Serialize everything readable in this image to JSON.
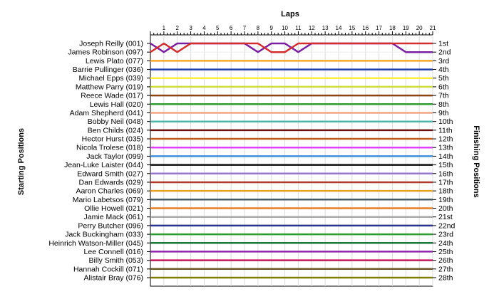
{
  "chart_data": {
    "type": "line",
    "title": "Laps",
    "ylabel_left": "Starting Positions",
    "ylabel_right": "Finishing Positions",
    "x": [
      0,
      1,
      2,
      3,
      4,
      5,
      6,
      7,
      8,
      9,
      10,
      11,
      12,
      13,
      14,
      15,
      16,
      17,
      18,
      19,
      20,
      21
    ],
    "x_ticks": [
      "1",
      "2",
      "3",
      "4",
      "5",
      "6",
      "7",
      "8",
      "9",
      "10",
      "11",
      "12",
      "13",
      "14",
      "15",
      "16",
      "17",
      "18",
      "19",
      "20",
      "21"
    ],
    "finishing_positions": [
      "1st",
      "2nd",
      "3rd",
      "4th",
      "5th",
      "6th",
      "7th",
      "8th",
      "9th",
      "10th",
      "11th",
      "12th",
      "13th",
      "14th",
      "15th",
      "16th",
      "17th",
      "18th",
      "19th",
      "20th",
      "21st",
      "22nd",
      "23rd",
      "24th",
      "25th",
      "26th",
      "27th",
      "28th"
    ],
    "series": [
      {
        "name": "Joseph Reilly (001)",
        "color": "#7b1fa2",
        "values": [
          1,
          2,
          1,
          1,
          1,
          1,
          1,
          1,
          2,
          1,
          1,
          2,
          1,
          1,
          1,
          1,
          1,
          1,
          1,
          2,
          2,
          2
        ]
      },
      {
        "name": "James Robinson (097)",
        "color": "#d32f2f",
        "values": [
          2,
          1,
          2,
          1,
          1,
          1,
          1,
          1,
          1,
          2,
          2,
          1,
          1,
          1,
          1,
          1,
          1,
          1,
          1,
          1,
          1,
          1
        ]
      },
      {
        "name": "Lewis Plato (077)",
        "color": "#f9a825",
        "values": [
          3,
          3,
          3,
          3,
          3,
          3,
          3,
          3,
          3,
          3,
          3,
          3,
          3,
          3,
          3,
          3,
          3,
          3,
          3,
          3,
          3,
          3
        ]
      },
      {
        "name": "Barrie Pullinger (036)",
        "color": "#1e3fae",
        "values": [
          4,
          4,
          4,
          4,
          4,
          4,
          4,
          4,
          4,
          4,
          4,
          4,
          4,
          4,
          4,
          4,
          4,
          4,
          4,
          4,
          4,
          4
        ]
      },
      {
        "name": "Michael Epps (039)",
        "color": "#ffeb3b",
        "values": [
          5,
          5,
          5,
          5,
          5,
          5,
          5,
          5,
          5,
          5,
          5,
          5,
          5,
          5,
          5,
          5,
          5,
          5,
          5,
          5,
          5,
          5
        ]
      },
      {
        "name": "Matthew Parry (019)",
        "color": "#cddc39",
        "values": [
          6,
          6,
          6,
          6,
          6,
          6,
          6,
          6,
          6,
          6,
          6,
          6,
          6,
          6,
          6,
          6,
          6,
          6,
          6,
          6,
          6,
          6
        ]
      },
      {
        "name": "Reece Wade (017)",
        "color": "#8b4513",
        "values": [
          7,
          7,
          7,
          7,
          7,
          7,
          7,
          7,
          7,
          7,
          7,
          7,
          7,
          7,
          7,
          7,
          7,
          7,
          7,
          7,
          7,
          7
        ]
      },
      {
        "name": "Lewis Hall (020)",
        "color": "#2e9d2e",
        "values": [
          8,
          8,
          8,
          8,
          8,
          8,
          8,
          8,
          8,
          8,
          8,
          8,
          8,
          8,
          8,
          8,
          8,
          8,
          8,
          8,
          8,
          8
        ]
      },
      {
        "name": "Adam Shepherd (041)",
        "color": "#f4a582",
        "values": [
          9,
          9,
          9,
          9,
          9,
          9,
          9,
          9,
          9,
          9,
          9,
          9,
          9,
          9,
          9,
          9,
          9,
          9,
          9,
          9,
          9,
          9
        ]
      },
      {
        "name": "Bobby Neil (048)",
        "color": "#4db6ac",
        "values": [
          10,
          10,
          10,
          10,
          10,
          10,
          10,
          10,
          10,
          10,
          10,
          10,
          10,
          10,
          10,
          10,
          10,
          10,
          10,
          10,
          10,
          10
        ]
      },
      {
        "name": "Ben Childs (024)",
        "color": "#6d1010",
        "values": [
          11,
          11,
          11,
          11,
          11,
          11,
          11,
          11,
          11,
          11,
          11,
          11,
          11,
          11,
          11,
          11,
          11,
          11,
          11,
          11,
          11,
          11
        ]
      },
      {
        "name": "Hector Hurst (035)",
        "color": "#c05a1a",
        "values": [
          12,
          12,
          12,
          12,
          12,
          12,
          12,
          12,
          12,
          12,
          12,
          12,
          12,
          12,
          12,
          12,
          12,
          12,
          12,
          12,
          12,
          12
        ]
      },
      {
        "name": "Nicola Trolese (018)",
        "color": "#e040fb",
        "values": [
          13,
          13,
          13,
          13,
          13,
          13,
          13,
          13,
          13,
          13,
          13,
          13,
          13,
          13,
          13,
          13,
          13,
          13,
          13,
          13,
          13,
          13
        ]
      },
      {
        "name": "Jack Taylor (099)",
        "color": "#3e8edc",
        "values": [
          14,
          14,
          14,
          14,
          14,
          14,
          14,
          14,
          14,
          14,
          14,
          14,
          14,
          14,
          14,
          14,
          14,
          14,
          14,
          14,
          14,
          14
        ]
      },
      {
        "name": "Jean-Luke Laister (044)",
        "color": "#111111",
        "values": [
          15,
          15,
          15,
          15,
          15,
          15,
          15,
          15,
          15,
          15,
          15,
          15,
          15,
          15,
          15,
          15,
          15,
          15,
          15,
          15,
          15,
          15
        ]
      },
      {
        "name": "Edward Smith (027)",
        "color": "#9575cd",
        "values": [
          16,
          16,
          16,
          16,
          16,
          16,
          16,
          16,
          16,
          16,
          16,
          16,
          16,
          16,
          16,
          16,
          16,
          16,
          16,
          16,
          16,
          16
        ]
      },
      {
        "name": "Dan Edwards (029)",
        "color": "#b03a2e",
        "values": [
          17,
          17,
          17,
          17,
          17,
          17,
          17,
          17,
          17,
          17,
          17,
          17,
          17,
          17,
          17,
          17,
          17,
          17,
          17,
          17,
          17,
          17
        ]
      },
      {
        "name": "Aaron Charles (069)",
        "color": "#e8a020",
        "values": [
          18,
          18,
          18,
          18,
          18,
          18,
          18,
          18,
          18,
          18,
          18,
          18,
          18,
          18,
          18,
          18,
          18,
          18,
          18,
          18,
          18,
          18
        ]
      },
      {
        "name": "Mario Labetsos (079)",
        "color": "#455a64",
        "values": [
          19,
          19,
          19,
          19,
          19,
          19,
          19,
          19,
          19,
          19,
          19,
          19,
          19,
          19,
          19,
          19,
          19,
          19,
          19,
          19,
          19,
          19
        ]
      },
      {
        "name": "Ollie Howell (021)",
        "color": "#e67e22",
        "values": [
          20,
          20,
          20,
          20,
          20,
          20,
          20,
          20,
          20,
          20,
          20,
          20,
          20,
          20,
          20,
          20,
          20,
          20,
          20,
          20,
          20,
          20
        ]
      },
      {
        "name": "Jamie Mack (061)",
        "color": "#a9a9a9",
        "values": [
          21,
          21,
          21,
          21,
          21,
          21,
          21,
          21,
          21,
          21,
          21,
          21,
          21,
          21,
          21,
          21,
          21,
          21,
          21,
          21,
          21,
          21
        ]
      },
      {
        "name": "Perry Butcher (096)",
        "color": "#283593",
        "values": [
          22,
          22,
          22,
          22,
          22,
          22,
          22,
          22,
          22,
          22,
          22,
          22,
          22,
          22,
          22,
          22,
          22,
          22,
          22,
          22,
          22,
          22
        ]
      },
      {
        "name": "Jack Buckingham (033)",
        "color": "#2e9d2e",
        "values": [
          23,
          23,
          23,
          23,
          23,
          23,
          23,
          23,
          23,
          23,
          23,
          23,
          23,
          23,
          23,
          23,
          23,
          23,
          23,
          23,
          23,
          23
        ]
      },
      {
        "name": "Heinrich Watson-Miller (045)",
        "color": "#1b7a3a",
        "values": [
          24,
          24,
          24,
          24,
          24,
          24,
          24,
          24,
          24,
          24,
          24,
          24,
          24,
          24,
          24,
          24,
          24,
          24,
          24,
          24,
          24,
          24
        ]
      },
      {
        "name": "Lee Connell (016)",
        "color": "#8e24aa",
        "values": [
          25,
          25,
          25,
          25,
          25,
          25,
          25,
          25,
          25,
          25,
          25,
          25,
          25,
          25,
          25,
          25,
          25,
          25,
          25,
          25,
          25,
          25
        ]
      },
      {
        "name": "Billy Smith (053)",
        "color": "#c2185b",
        "values": [
          26,
          26,
          26,
          26,
          26,
          26,
          26,
          26,
          26,
          26,
          26,
          26,
          26,
          26,
          26,
          26,
          26,
          26,
          26,
          26,
          26,
          26
        ]
      },
      {
        "name": "Hannah Cockill (071)",
        "color": "#6d5a2a",
        "values": [
          27,
          27,
          27,
          27,
          27,
          27,
          27,
          27,
          27,
          27,
          27,
          27,
          27,
          27,
          27,
          27,
          27,
          27,
          27,
          27,
          27,
          27
        ]
      },
      {
        "name": "Alistair Bray (076)",
        "color": "#808000",
        "values": [
          28,
          28,
          28,
          28,
          28,
          28,
          28,
          28,
          28,
          28,
          28,
          28,
          28,
          28,
          28,
          28,
          28,
          28,
          28,
          28,
          28,
          28
        ]
      }
    ],
    "grid": true,
    "ylim": [
      1,
      28
    ],
    "xlim": [
      0,
      21
    ]
  }
}
